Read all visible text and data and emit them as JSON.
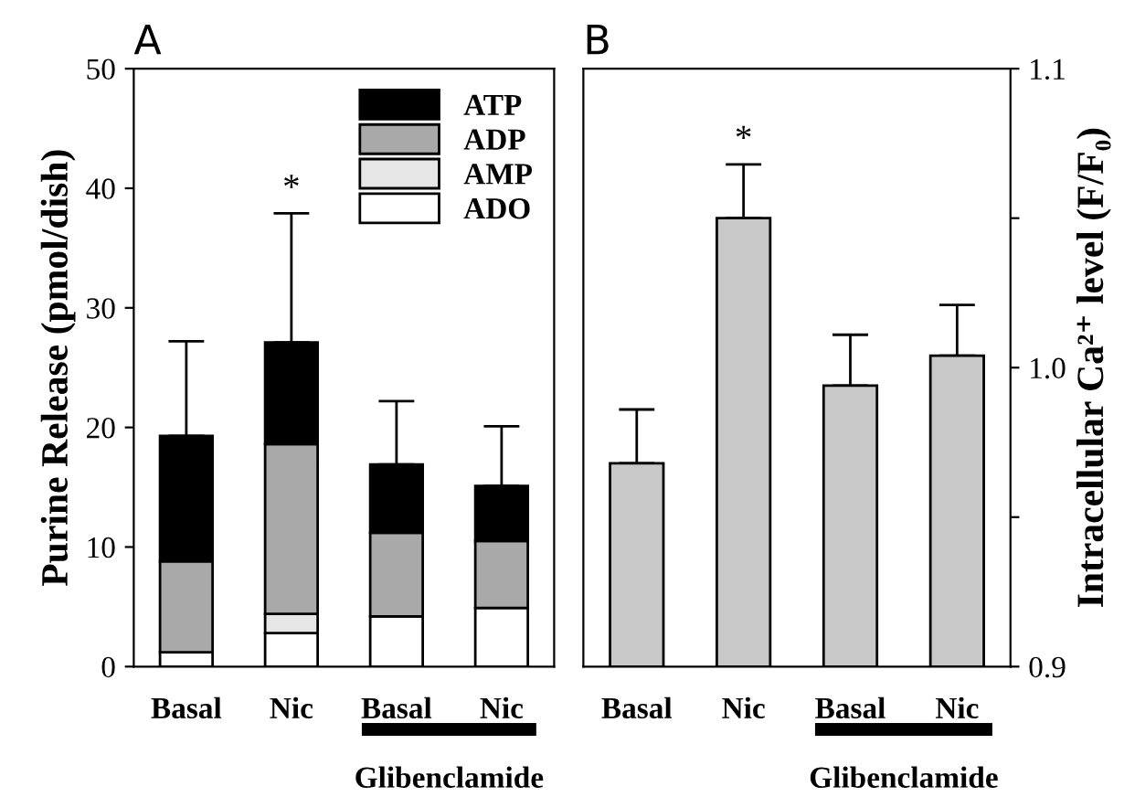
{
  "chart_data": [
    {
      "type": "bar",
      "title": "A",
      "ylabel": "Purine Release (pmol/dish)",
      "categories": [
        "Basal",
        "Nic",
        "Basal",
        "Nic"
      ],
      "stacked": true,
      "legend": "top right",
      "ylim": [
        0,
        50
      ],
      "yticks": [
        0,
        10,
        20,
        30,
        40,
        50
      ],
      "grid": false,
      "series": [
        {
          "name": "ADO",
          "color": "#ffffff",
          "values": [
            1.2,
            2.8,
            4.2,
            4.9
          ]
        },
        {
          "name": "AMP",
          "color": "#e6e6e6",
          "values": [
            0,
            1.6,
            0,
            0
          ]
        },
        {
          "name": "ADP",
          "color": "#a9a9a9",
          "values": [
            7.6,
            14.2,
            7.0,
            5.6
          ]
        },
        {
          "name": "ATP",
          "color": "#000000",
          "values": [
            10.5,
            8.5,
            5.7,
            4.6
          ],
          "errors": [
            [
              19.3,
              27.2
            ],
            [
              27.1,
              37.9
            ],
            [
              16.9,
              22.2
            ],
            [
              15.1,
              20.1
            ]
          ]
        }
      ],
      "annotations": [
        "*",
        "Glibenclamide"
      ]
    },
    {
      "type": "bar",
      "title": "B",
      "ylabel": "Intracellular Ca²⁺ level (F/F₀)",
      "categories": [
        "Basal",
        "Nic",
        "Basal",
        "Nic"
      ],
      "legend": false,
      "ylim": [
        0.9,
        1.1
      ],
      "yticks": [
        {
          "value": 0.9,
          "label": "0.9"
        },
        {
          "value": 0.95,
          "label": null
        },
        {
          "value": 1.0,
          "label": "1.0"
        },
        {
          "value": 1.05,
          "label": null
        },
        {
          "value": 1.1,
          "label": "1.1"
        }
      ],
      "grid": false,
      "series": [
        {
          "color": "#c8c8c8",
          "values": [
            0.968,
            1.05,
            0.994,
            1.004
          ],
          "errors": [
            [
              0.968,
              0.986
            ],
            [
              1.05,
              1.068
            ],
            [
              0.994,
              1.011
            ],
            [
              1.004,
              1.021
            ]
          ]
        }
      ],
      "annotations": [
        "*",
        "Glibenclamide"
      ]
    }
  ]
}
